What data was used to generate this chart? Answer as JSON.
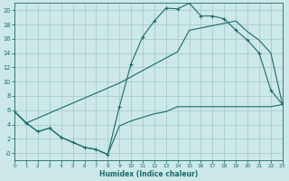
{
  "xlabel": "Humidex (Indice chaleur)",
  "bg_color": "#cce8e8",
  "grid_color": "#aacccc",
  "line_color": "#1a6b6b",
  "xlim": [
    0,
    23
  ],
  "ylim": [
    -1,
    21
  ],
  "xticks": [
    0,
    1,
    2,
    3,
    4,
    5,
    6,
    7,
    8,
    9,
    10,
    11,
    12,
    13,
    14,
    15,
    16,
    17,
    18,
    19,
    20,
    21,
    22,
    23
  ],
  "yticks": [
    0,
    2,
    4,
    6,
    8,
    10,
    12,
    14,
    16,
    18,
    20
  ],
  "ytick_labels": [
    "-0",
    "2",
    "4",
    "6",
    "8",
    "10",
    "12",
    "14",
    "16",
    "18",
    "20"
  ],
  "line1_x": [
    0,
    1,
    2,
    3,
    4,
    5,
    6,
    7,
    8,
    9,
    10,
    11,
    12,
    13,
    14,
    15,
    16,
    17,
    18,
    19,
    20,
    21,
    22,
    23
  ],
  "line1_y": [
    5.8,
    4.2,
    3.0,
    3.5,
    2.2,
    1.5,
    0.8,
    0.5,
    -0.2,
    6.5,
    12.5,
    16.3,
    18.5,
    20.3,
    20.2,
    21.0,
    19.2,
    19.2,
    18.8,
    17.2,
    15.8,
    14.0,
    8.8,
    6.8
  ],
  "line2_x": [
    0,
    1,
    9,
    14,
    15,
    19,
    20,
    21,
    22,
    23
  ],
  "line2_y": [
    5.8,
    4.2,
    9.8,
    14.2,
    17.2,
    18.5,
    17.0,
    15.8,
    14.0,
    6.8
  ],
  "line3_x": [
    0,
    1,
    2,
    3,
    4,
    5,
    6,
    7,
    8,
    9,
    10,
    11,
    12,
    13,
    14,
    15,
    16,
    17,
    18,
    19,
    20,
    21,
    22,
    23
  ],
  "line3_y": [
    5.8,
    4.2,
    3.0,
    3.5,
    2.2,
    1.5,
    0.8,
    0.5,
    -0.2,
    3.8,
    4.5,
    5.0,
    5.5,
    5.8,
    6.5,
    6.5,
    6.5,
    6.5,
    6.5,
    6.5,
    6.5,
    6.5,
    6.5,
    6.8
  ]
}
